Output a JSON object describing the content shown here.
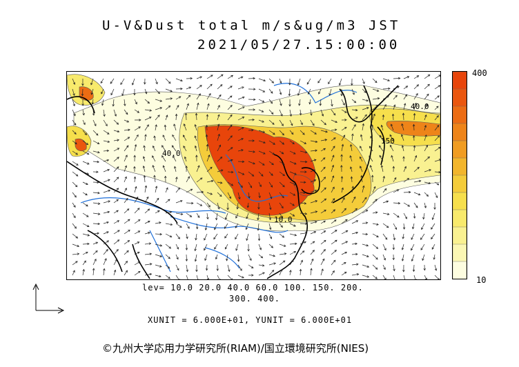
{
  "header": {
    "title": "U-V&Dust total m/s&ug/m3 JST",
    "datetime": "2021/05/27.15:00:00"
  },
  "colorbar": {
    "max_label": "400",
    "min_label": "10",
    "colors": [
      "#fdfde0",
      "#fbf7b4",
      "#f9f191",
      "#f8ea6c",
      "#f6df4c",
      "#f4cc3a",
      "#f2b52c",
      "#f09c22",
      "#ee8419",
      "#ec6c13",
      "#ea560e",
      "#e8450b"
    ]
  },
  "contour_levels": {
    "line1": "lev= 10.0 20.0 40.0 60.0 100. 150. 200.",
    "line2": "300. 400."
  },
  "units": "XUNIT = 6.000E+01, YUNIT = 6.000E+01",
  "map_labels": {
    "label_40_west": "40.0",
    "label_40_east": "40.0",
    "label_150_japan": "150",
    "label_10_south": "10.0"
  },
  "copyright": "©九州大学応用力学研究所(RIAM)/国立環境研究所(NIES)",
  "colors": {
    "coast": "#000000",
    "river": "#1e6fd9",
    "peak": "#e8450b",
    "arrow": "#222222"
  }
}
